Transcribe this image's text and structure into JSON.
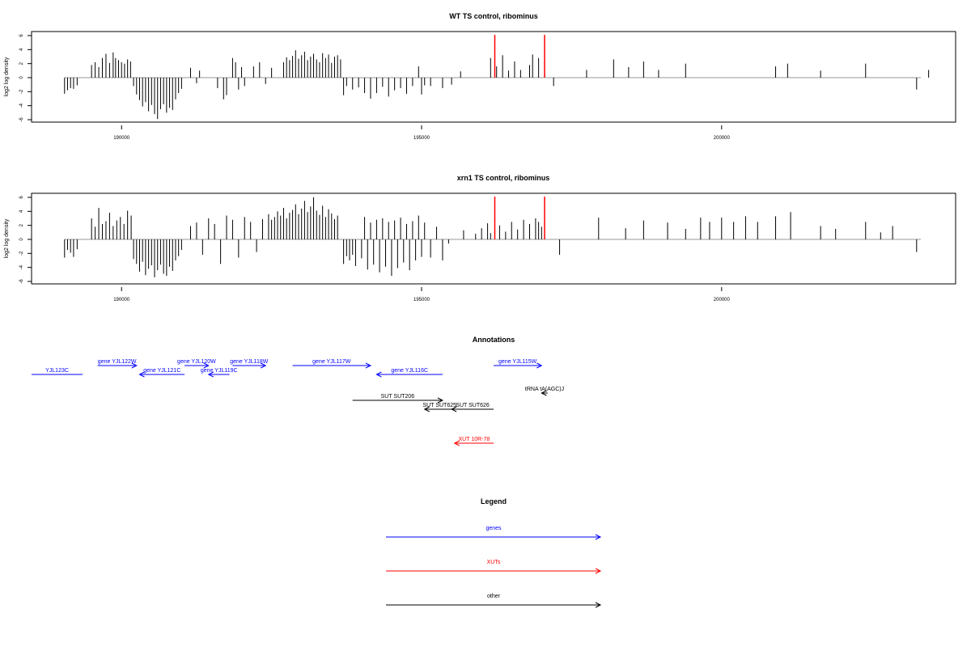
{
  "chart_data": [
    {
      "type": "bar",
      "title": "WT TS control, ribominus",
      "ylabel": "log2 log density",
      "xlabel": "",
      "xlim": [
        188500,
        203900
      ],
      "ylim": [
        -6,
        6
      ],
      "yticks": [
        -6,
        -4,
        -2,
        0,
        2,
        4,
        6
      ],
      "xticks": [
        190000,
        195000,
        200000
      ],
      "grid": false,
      "bars_black": [
        [
          189050,
          -2.3
        ],
        [
          189100,
          -1.8
        ],
        [
          189150,
          -1.5
        ],
        [
          189200,
          -1.6
        ],
        [
          189260,
          -1.1
        ],
        [
          189500,
          1.8
        ],
        [
          189560,
          2.2
        ],
        [
          189620,
          1.5
        ],
        [
          189680,
          2.8
        ],
        [
          189740,
          3.4
        ],
        [
          189800,
          2.1
        ],
        [
          189860,
          3.6
        ],
        [
          189900,
          2.8
        ],
        [
          189950,
          2.5
        ],
        [
          190000,
          2.2
        ],
        [
          190050,
          2.0
        ],
        [
          190100,
          2.6
        ],
        [
          190150,
          2.3
        ],
        [
          190200,
          -1.2
        ],
        [
          190250,
          -2.4
        ],
        [
          190300,
          -3.2
        ],
        [
          190350,
          -4.1
        ],
        [
          190400,
          -3.5
        ],
        [
          190450,
          -4.8
        ],
        [
          190500,
          -3.9
        ],
        [
          190550,
          -5.2
        ],
        [
          190600,
          -5.9
        ],
        [
          190650,
          -4.5
        ],
        [
          190700,
          -3.8
        ],
        [
          190750,
          -5.0
        ],
        [
          190800,
          -4.3
        ],
        [
          190850,
          -4.6
        ],
        [
          190900,
          -3.1
        ],
        [
          190950,
          -2.2
        ],
        [
          191000,
          -1.6
        ],
        [
          191150,
          1.4
        ],
        [
          191250,
          -0.8
        ],
        [
          191300,
          1.0
        ],
        [
          191600,
          -1.5
        ],
        [
          191700,
          -3.1
        ],
        [
          191750,
          -2.5
        ],
        [
          191850,
          2.8
        ],
        [
          191900,
          2.2
        ],
        [
          191950,
          -1.7
        ],
        [
          192000,
          1.5
        ],
        [
          192050,
          -1.2
        ],
        [
          192200,
          1.6
        ],
        [
          192300,
          2.2
        ],
        [
          192400,
          -0.9
        ],
        [
          192500,
          1.4
        ],
        [
          192700,
          2.2
        ],
        [
          192750,
          2.9
        ],
        [
          192800,
          2.5
        ],
        [
          192850,
          3.1
        ],
        [
          192900,
          3.9
        ],
        [
          192950,
          2.7
        ],
        [
          193000,
          3.2
        ],
        [
          193050,
          3.7
        ],
        [
          193100,
          2.5
        ],
        [
          193150,
          3.0
        ],
        [
          193200,
          3.4
        ],
        [
          193250,
          2.6
        ],
        [
          193300,
          2.2
        ],
        [
          193350,
          3.5
        ],
        [
          193400,
          2.8
        ],
        [
          193450,
          3.3
        ],
        [
          193500,
          2.1
        ],
        [
          193550,
          3.0
        ],
        [
          193600,
          3.2
        ],
        [
          193650,
          2.6
        ],
        [
          193700,
          -2.5
        ],
        [
          193750,
          -1.2
        ],
        [
          193850,
          -1.7
        ],
        [
          193950,
          -1.4
        ],
        [
          194050,
          -2.2
        ],
        [
          194150,
          -3.0
        ],
        [
          194250,
          -2.2
        ],
        [
          194350,
          -1.3
        ],
        [
          194450,
          -2.7
        ],
        [
          194550,
          -1.8
        ],
        [
          194650,
          -1.5
        ],
        [
          194750,
          -2.3
        ],
        [
          194850,
          -1.2
        ],
        [
          194950,
          1.6
        ],
        [
          195000,
          -2.4
        ],
        [
          195050,
          -1.1
        ],
        [
          195150,
          -1.2
        ],
        [
          195350,
          -1.5
        ],
        [
          195500,
          -1.0
        ],
        [
          195650,
          0.9
        ],
        [
          196150,
          2.8
        ],
        [
          196250,
          1.6
        ],
        [
          196350,
          3.2
        ],
        [
          196450,
          1.0
        ],
        [
          196550,
          2.3
        ],
        [
          196650,
          1.1
        ],
        [
          196800,
          1.8
        ],
        [
          196850,
          3.3
        ],
        [
          196950,
          2.8
        ],
        [
          197050,
          1.3
        ],
        [
          197200,
          -1.2
        ],
        [
          197750,
          1.1
        ],
        [
          198200,
          2.6
        ],
        [
          198450,
          1.5
        ],
        [
          198700,
          2.3
        ],
        [
          198950,
          1.1
        ],
        [
          199400,
          2.0
        ],
        [
          200900,
          1.6
        ],
        [
          201100,
          2.0
        ],
        [
          201650,
          1.0
        ],
        [
          202400,
          2.0
        ],
        [
          203250,
          -1.7
        ],
        [
          203450,
          1.1
        ]
      ],
      "bars_red": [
        [
          196220,
          6.1
        ],
        [
          197050,
          6.1
        ]
      ]
    },
    {
      "type": "bar",
      "title": "xrn1 TS control, ribominus",
      "ylabel": "log2 log density",
      "xlabel": "",
      "xlim": [
        188500,
        203900
      ],
      "ylim": [
        -6,
        6
      ],
      "yticks": [
        -6,
        -4,
        -2,
        0,
        2,
        4,
        6
      ],
      "xticks": [
        190000,
        195000,
        200000
      ],
      "grid": false,
      "bars_black": [
        [
          189050,
          -2.6
        ],
        [
          189100,
          -1.5
        ],
        [
          189150,
          -1.9
        ],
        [
          189200,
          -2.5
        ],
        [
          189260,
          -1.4
        ],
        [
          189500,
          3.0
        ],
        [
          189560,
          1.8
        ],
        [
          189620,
          4.5
        ],
        [
          189680,
          2.2
        ],
        [
          189740,
          2.6
        ],
        [
          189800,
          3.8
        ],
        [
          189860,
          1.9
        ],
        [
          189920,
          2.7
        ],
        [
          189980,
          3.2
        ],
        [
          190040,
          2.2
        ],
        [
          190100,
          4.1
        ],
        [
          190160,
          3.4
        ],
        [
          190200,
          -2.8
        ],
        [
          190250,
          -3.5
        ],
        [
          190300,
          -4.6
        ],
        [
          190350,
          -3.2
        ],
        [
          190400,
          -5.1
        ],
        [
          190450,
          -4.2
        ],
        [
          190500,
          -3.7
        ],
        [
          190550,
          -5.4
        ],
        [
          190600,
          -4.4
        ],
        [
          190650,
          -3.6
        ],
        [
          190700,
          -4.9
        ],
        [
          190750,
          -5.2
        ],
        [
          190800,
          -3.9
        ],
        [
          190850,
          -4.5
        ],
        [
          190900,
          -3.0
        ],
        [
          190950,
          -2.4
        ],
        [
          191000,
          -1.5
        ],
        [
          191150,
          1.9
        ],
        [
          191250,
          2.4
        ],
        [
          191350,
          -2.2
        ],
        [
          191450,
          3.0
        ],
        [
          191550,
          2.2
        ],
        [
          191650,
          -3.5
        ],
        [
          191750,
          3.4
        ],
        [
          191850,
          2.8
        ],
        [
          191950,
          -2.6
        ],
        [
          192050,
          3.2
        ],
        [
          192150,
          2.5
        ],
        [
          192250,
          -1.8
        ],
        [
          192350,
          2.9
        ],
        [
          192450,
          3.6
        ],
        [
          192500,
          2.8
        ],
        [
          192550,
          3.2
        ],
        [
          192600,
          4.0
        ],
        [
          192650,
          3.4
        ],
        [
          192700,
          4.5
        ],
        [
          192750,
          3.0
        ],
        [
          192800,
          3.8
        ],
        [
          192850,
          4.2
        ],
        [
          192900,
          5.0
        ],
        [
          192950,
          3.6
        ],
        [
          193000,
          4.4
        ],
        [
          193050,
          5.5
        ],
        [
          193100,
          3.9
        ],
        [
          193150,
          4.7
        ],
        [
          193200,
          6.0
        ],
        [
          193250,
          4.1
        ],
        [
          193300,
          3.5
        ],
        [
          193350,
          4.8
        ],
        [
          193400,
          3.2
        ],
        [
          193450,
          4.3
        ],
        [
          193500,
          3.7
        ],
        [
          193550,
          2.9
        ],
        [
          193600,
          3.4
        ],
        [
          193700,
          -3.5
        ],
        [
          193750,
          -2.4
        ],
        [
          193800,
          -3.0
        ],
        [
          193850,
          -2.2
        ],
        [
          193900,
          -3.8
        ],
        [
          194000,
          -2.7
        ],
        [
          194050,
          3.2
        ],
        [
          194100,
          -4.3
        ],
        [
          194150,
          2.4
        ],
        [
          194200,
          -3.6
        ],
        [
          194250,
          2.8
        ],
        [
          194300,
          -4.7
        ],
        [
          194350,
          3.0
        ],
        [
          194400,
          -3.9
        ],
        [
          194450,
          2.5
        ],
        [
          194500,
          -5.2
        ],
        [
          194550,
          2.7
        ],
        [
          194600,
          -4.1
        ],
        [
          194650,
          3.1
        ],
        [
          194700,
          -3.3
        ],
        [
          194750,
          2.2
        ],
        [
          194800,
          -4.4
        ],
        [
          194850,
          2.6
        ],
        [
          194900,
          -3.0
        ],
        [
          194950,
          3.4
        ],
        [
          195000,
          -2.5
        ],
        [
          195050,
          2.4
        ],
        [
          195150,
          -2.6
        ],
        [
          195250,
          1.8
        ],
        [
          195350,
          -3.0
        ],
        [
          195450,
          -0.6
        ],
        [
          195700,
          1.3
        ],
        [
          195900,
          0.8
        ],
        [
          196000,
          1.6
        ],
        [
          196100,
          2.3
        ],
        [
          196150,
          0.9
        ],
        [
          196300,
          2.0
        ],
        [
          196400,
          1.1
        ],
        [
          196500,
          2.5
        ],
        [
          196600,
          1.4
        ],
        [
          196700,
          2.8
        ],
        [
          196800,
          2.2
        ],
        [
          196900,
          3.0
        ],
        [
          196950,
          2.5
        ],
        [
          197000,
          1.8
        ],
        [
          197300,
          -2.2
        ],
        [
          197950,
          3.1
        ],
        [
          198400,
          1.6
        ],
        [
          198700,
          2.7
        ],
        [
          199100,
          2.4
        ],
        [
          199400,
          1.5
        ],
        [
          199650,
          3.1
        ],
        [
          199800,
          2.5
        ],
        [
          200000,
          3.1
        ],
        [
          200200,
          2.5
        ],
        [
          200400,
          3.3
        ],
        [
          200600,
          2.5
        ],
        [
          200900,
          3.3
        ],
        [
          201150,
          3.9
        ],
        [
          201650,
          1.9
        ],
        [
          201900,
          1.5
        ],
        [
          202400,
          2.5
        ],
        [
          202650,
          1.0
        ],
        [
          202850,
          1.9
        ],
        [
          203250,
          -1.8
        ]
      ],
      "bars_red": [
        [
          196220,
          6.1
        ],
        [
          197050,
          6.1
        ]
      ]
    }
  ],
  "annotations": {
    "title": "Annotations",
    "features": [
      {
        "label": "YJL123C",
        "color": "#0000ff",
        "x1": 188500,
        "x2": 189350,
        "dir": "none",
        "row": 1
      },
      {
        "label": "gene YJL122W",
        "color": "#0000ff",
        "x1": 189600,
        "x2": 190250,
        "dir": "right",
        "row": 0
      },
      {
        "label": "gene YJL121C",
        "color": "#0000ff",
        "x1": 190300,
        "x2": 191050,
        "dir": "left",
        "row": 1
      },
      {
        "label": "gene YJL120W",
        "color": "#0000ff",
        "x1": 191050,
        "x2": 191450,
        "dir": "right",
        "row": 0
      },
      {
        "label": "gene YJL119C",
        "color": "#0000ff",
        "x1": 191450,
        "x2": 191800,
        "dir": "left",
        "row": 1
      },
      {
        "label": "gene YJL118W",
        "color": "#0000ff",
        "x1": 191850,
        "x2": 192400,
        "dir": "right",
        "row": 0
      },
      {
        "label": "gene YJL117W",
        "color": "#0000ff",
        "x1": 192850,
        "x2": 194150,
        "dir": "right",
        "row": 0
      },
      {
        "label": "gene YJL116C",
        "color": "#0000ff",
        "x1": 194250,
        "x2": 195350,
        "dir": "left",
        "row": 1
      },
      {
        "label": "gene YJL115W",
        "color": "#0000ff",
        "x1": 196200,
        "x2": 197000,
        "dir": "right",
        "row": 0
      },
      {
        "label": "tRNA tA(AGC)J",
        "color": "#000000",
        "x1": 197000,
        "x2": 197100,
        "dir": "left",
        "row": 2
      },
      {
        "label": "SUT SUT206",
        "color": "#000000",
        "x1": 193850,
        "x2": 195350,
        "dir": "right",
        "row": 3
      },
      {
        "label": "SUT SUT625",
        "color": "#000000",
        "x1": 195050,
        "x2": 195550,
        "dir": "left",
        "row": 4
      },
      {
        "label": "SUT SUT626",
        "color": "#000000",
        "x1": 195500,
        "x2": 196200,
        "dir": "left",
        "row": 4
      },
      {
        "label": "XUT 10R-78",
        "color": "#ff0000",
        "x1": 195550,
        "x2": 196200,
        "dir": "left",
        "row": 5
      }
    ]
  },
  "legend": {
    "title": "Legend",
    "items": [
      {
        "label": "genes",
        "color": "#0000ff"
      },
      {
        "label": "XUTs",
        "color": "#ff0000"
      },
      {
        "label": "other",
        "color": "#000000"
      }
    ]
  }
}
